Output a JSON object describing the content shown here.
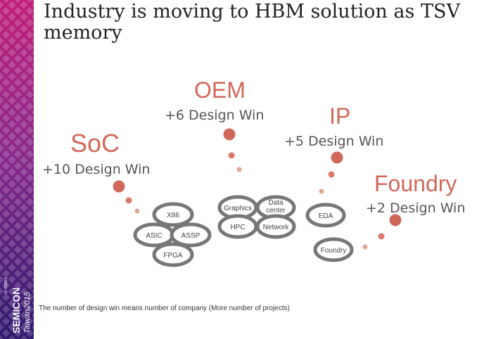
{
  "slide": {
    "title": "Industry is moving to HBM solution as TSV memory",
    "footnote": "The number of design win means number of company (More number of projects)"
  },
  "groups": [
    {
      "id": "soc",
      "label": "SoC",
      "design_win": "+10 Design Win",
      "items": [
        "X86",
        "ASIC",
        "ASSP",
        "FPGA"
      ]
    },
    {
      "id": "oem",
      "label": "OEM",
      "design_win": "+6 Design Win",
      "items": [
        "Graphics",
        "Data center",
        "HPC",
        "Network"
      ]
    },
    {
      "id": "ip",
      "label": "IP",
      "design_win": "+5 Design Win",
      "items": [
        "EDA"
      ]
    },
    {
      "id": "foundry",
      "label": "Foundry",
      "design_win": "+2 Design Win",
      "items": [
        "Foundry"
      ]
    }
  ],
  "logo": {
    "text_line1": "SEMICON",
    "text_line2": "Taiwan2015",
    "badge": "20 YEARS"
  },
  "colors": {
    "accent": "#d0685a",
    "ring": "#777777",
    "strip_top": "#b21f7a",
    "strip_bottom": "#3a1a72"
  }
}
